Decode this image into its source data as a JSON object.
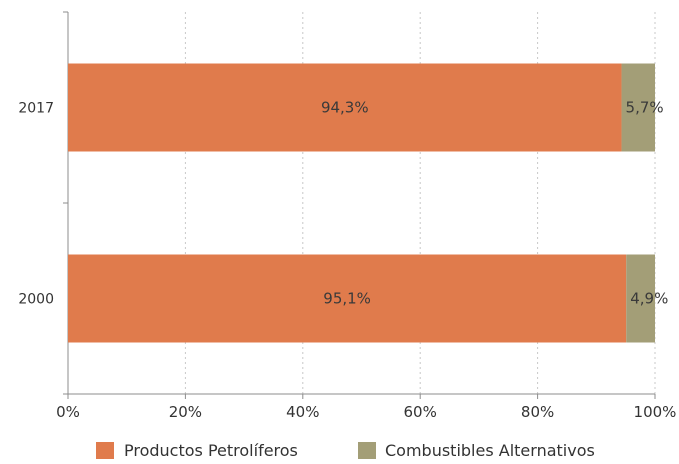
{
  "chart_data": {
    "type": "bar",
    "orientation": "horizontal",
    "stacked": true,
    "categories": [
      "2017",
      "2000"
    ],
    "series": [
      {
        "name": "Productos Petrolíferos",
        "values": [
          94.3,
          95.1
        ],
        "labels": [
          "94,3%",
          "95,1%"
        ],
        "color": "#E07B4C"
      },
      {
        "name": "Combustibles Alternativos",
        "values": [
          5.7,
          4.9
        ],
        "labels": [
          "5,7%",
          "4,9%"
        ],
        "color": "#A39E77"
      }
    ],
    "xlim": [
      0,
      100
    ],
    "xticks": [
      "0%",
      "20%",
      "40%",
      "60%",
      "80%",
      "100%"
    ],
    "grid": "vertical dotted",
    "legend": "bottom"
  }
}
